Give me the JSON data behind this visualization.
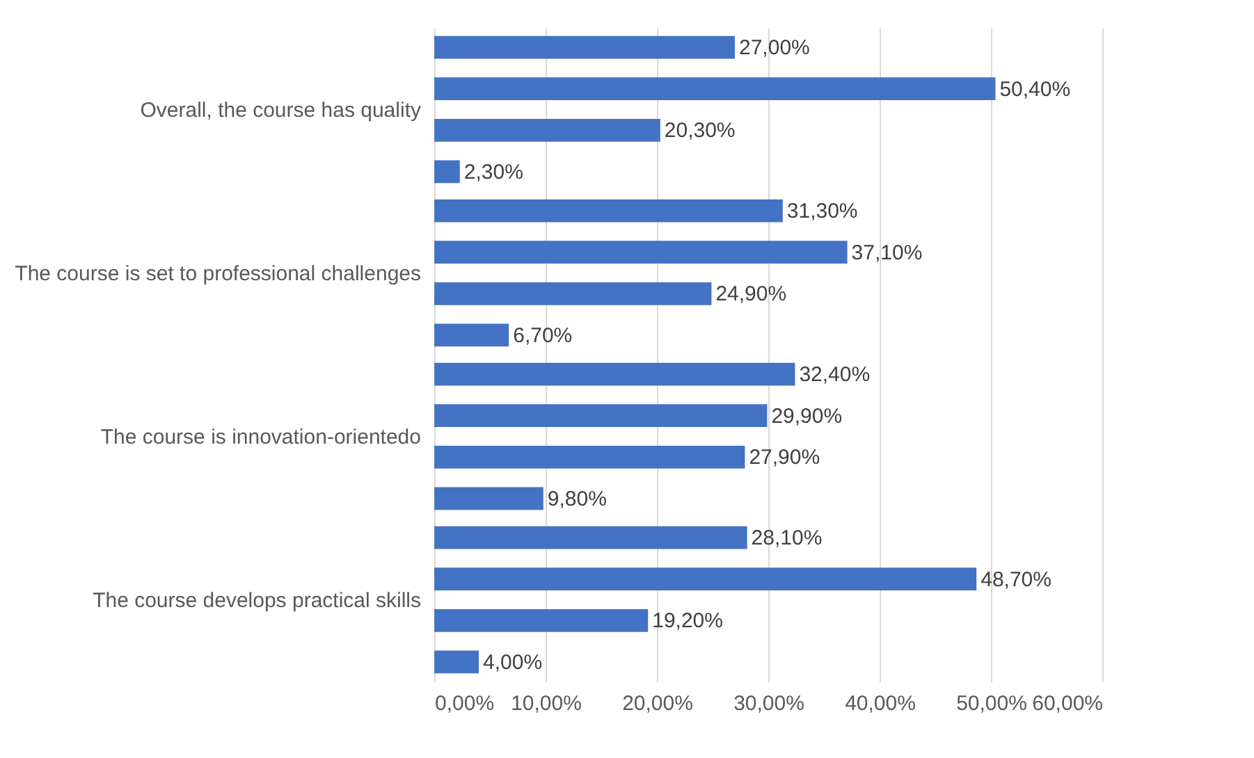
{
  "chart_data": {
    "type": "bar",
    "orientation": "horizontal",
    "categories": [
      "Overall, the course has quality",
      "The course is set to professional challenges",
      "The course is innovation-orientedo",
      "The course develops practical skills"
    ],
    "series": [
      {
        "color": "#4472c4",
        "values": [
          27.0,
          31.3,
          32.4,
          28.1
        ],
        "value_labels": [
          "27,00%",
          "31,30%",
          "32,40%",
          "28,10%"
        ]
      },
      {
        "color": "#4472c4",
        "values": [
          50.4,
          37.1,
          29.9,
          48.7
        ],
        "value_labels": [
          "50,40%",
          "37,10%",
          "29,90%",
          "48,70%"
        ]
      },
      {
        "color": "#4472c4",
        "values": [
          20.3,
          24.9,
          27.9,
          19.2
        ],
        "value_labels": [
          "20,30%",
          "24,90%",
          "27,90%",
          "19,20%"
        ]
      },
      {
        "color": "#4472c4",
        "values": [
          2.3,
          6.7,
          9.8,
          4.0
        ],
        "value_labels": [
          "2,30%",
          "6,70%",
          "9,80%",
          "4,00%"
        ]
      }
    ],
    "xlim": [
      0,
      60
    ],
    "xticks": [
      {
        "value": 0,
        "label": "0,00%"
      },
      {
        "value": 10,
        "label": "10,00%"
      },
      {
        "value": 20,
        "label": "20,00%"
      },
      {
        "value": 30,
        "label": "30,00%"
      },
      {
        "value": 40,
        "label": "40,00%"
      },
      {
        "value": 50,
        "label": "50,00%"
      },
      {
        "value": 60,
        "label": "60,00%"
      }
    ],
    "grid": "x",
    "legend": false
  }
}
